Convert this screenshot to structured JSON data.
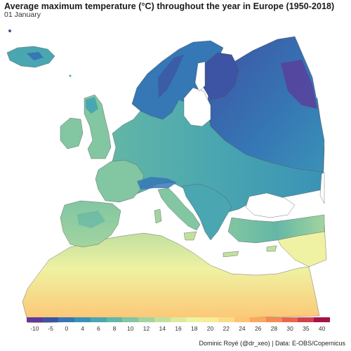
{
  "header": {
    "title": "Average maximum temperature (°C) throughout the year in Europe (1950-2018)",
    "date_label": "01 January"
  },
  "map": {
    "region": "Europe",
    "variable": "Average maximum temperature (°C)",
    "regions": [
      {
        "name": "Iceland",
        "temp_c": 0
      },
      {
        "name": "Scandinavia",
        "temp_c": -4
      },
      {
        "name": "Northern Russia",
        "temp_c": -10
      },
      {
        "name": "Eastern Europe",
        "temp_c": -4
      },
      {
        "name": "British Isles",
        "temp_c": 8
      },
      {
        "name": "France",
        "temp_c": 8
      },
      {
        "name": "Central Europe",
        "temp_c": 2
      },
      {
        "name": "Alps",
        "temp_c": -4
      },
      {
        "name": "Iberian Peninsula",
        "temp_c": 12
      },
      {
        "name": "Italy",
        "temp_c": 10
      },
      {
        "name": "Balkans",
        "temp_c": 4
      },
      {
        "name": "Turkey",
        "temp_c": 6
      },
      {
        "name": "North Africa",
        "temp_c": 18
      },
      {
        "name": "Middle East",
        "temp_c": 16
      }
    ]
  },
  "legend": {
    "labels": [
      "-10",
      "-5",
      "0",
      "4",
      "6",
      "8",
      "10",
      "12",
      "14",
      "16",
      "18",
      "20",
      "22",
      "24",
      "26",
      "28",
      "30",
      "35",
      "40"
    ],
    "colors": [
      "#5e3a9a",
      "#3d53a3",
      "#3677b5",
      "#3a92b6",
      "#4aa6b0",
      "#64b7a6",
      "#82c6a2",
      "#a2d49f",
      "#c1e09f",
      "#dcea9e",
      "#eef2a2",
      "#f8ec98",
      "#fcdb85",
      "#fdc473",
      "#f9a862",
      "#f48b55",
      "#e8674b",
      "#d3424a",
      "#a7124a"
    ]
  },
  "credit": {
    "text": "Dominic Royé (@dr_xeo) | Data: E-OBS/Copernicus"
  }
}
